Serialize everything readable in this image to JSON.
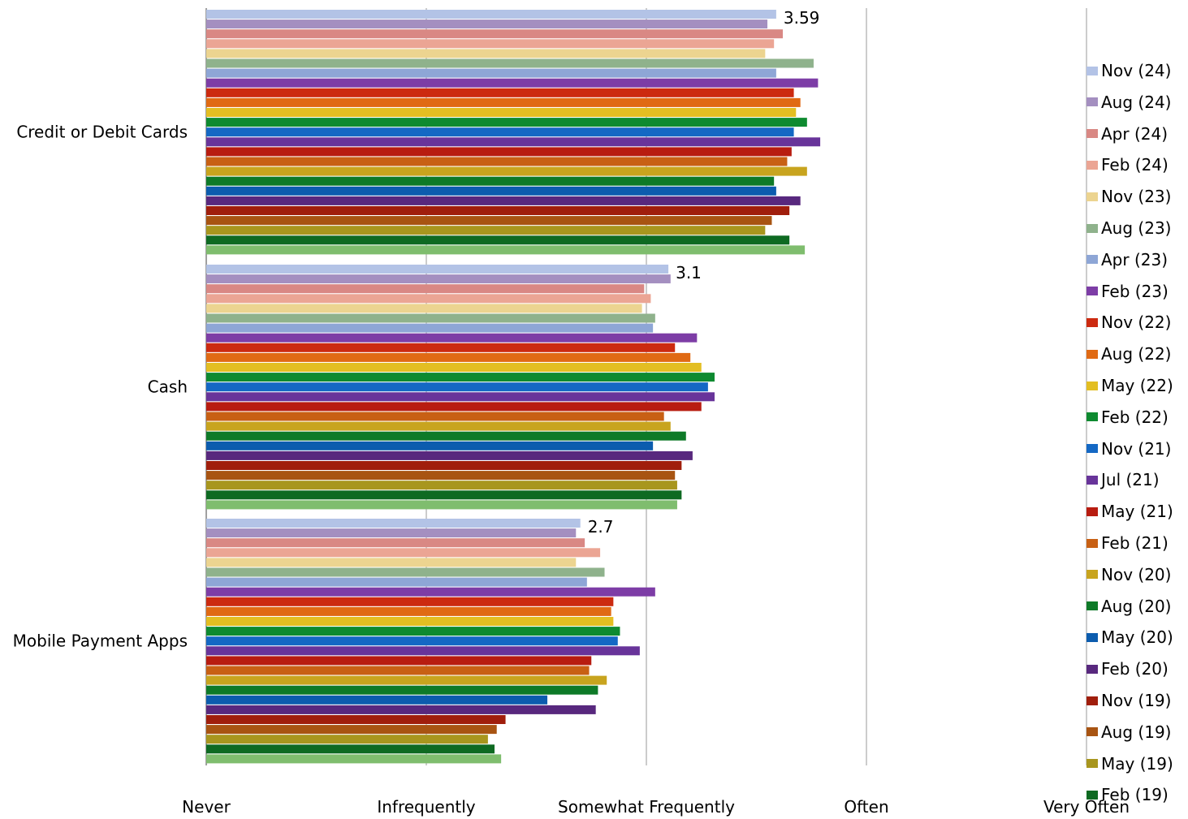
{
  "chart_data": {
    "type": "bar",
    "orientation": "horizontal",
    "categories": [
      "Credit or Debit Cards",
      "Cash",
      "Mobile Payment Apps"
    ],
    "x_ticks": [
      {
        "value": 1,
        "label": "Never"
      },
      {
        "value": 2,
        "label": "Infrequently"
      },
      {
        "value": 3,
        "label": "Somewhat Frequently"
      },
      {
        "value": 4,
        "label": "Often"
      },
      {
        "value": 5,
        "label": "Very Often"
      }
    ],
    "xlim": [
      1,
      5
    ],
    "grid": true,
    "legend_position": "right",
    "data_labels": [
      {
        "category": 0,
        "series": 0,
        "text": "3.59"
      },
      {
        "category": 1,
        "series": 0,
        "text": "3.1"
      },
      {
        "category": 2,
        "series": 0,
        "text": "2.7"
      }
    ],
    "series": [
      {
        "name": "Nov (24)",
        "color": "#b3c3e6",
        "values": [
          3.59,
          3.1,
          2.7
        ]
      },
      {
        "name": "Aug (24)",
        "color": "#a48fc0",
        "values": [
          3.55,
          3.11,
          2.68
        ]
      },
      {
        "name": "Apr (24)",
        "color": "#d98884",
        "values": [
          3.62,
          2.99,
          2.72
        ]
      },
      {
        "name": "Feb (24)",
        "color": "#eba594",
        "values": [
          3.58,
          3.02,
          2.79
        ]
      },
      {
        "name": "Nov (23)",
        "color": "#ecd490",
        "values": [
          3.54,
          2.98,
          2.68
        ]
      },
      {
        "name": "Aug (23)",
        "color": "#8fb28c",
        "values": [
          3.76,
          3.04,
          2.81
        ]
      },
      {
        "name": "Apr (23)",
        "color": "#8ea6d6",
        "values": [
          3.59,
          3.03,
          2.73
        ]
      },
      {
        "name": "Feb (23)",
        "color": "#7d3da6",
        "values": [
          3.78,
          3.23,
          3.04
        ]
      },
      {
        "name": "Nov (22)",
        "color": "#cc2a10",
        "values": [
          3.67,
          3.13,
          2.85
        ]
      },
      {
        "name": "Aug (22)",
        "color": "#e06a14",
        "values": [
          3.7,
          3.2,
          2.84
        ]
      },
      {
        "name": "May (22)",
        "color": "#e3be22",
        "values": [
          3.68,
          3.25,
          2.85
        ]
      },
      {
        "name": "Feb (22)",
        "color": "#0e8a30",
        "values": [
          3.73,
          3.31,
          2.88
        ]
      },
      {
        "name": "Nov (21)",
        "color": "#1468c4",
        "values": [
          3.67,
          3.28,
          2.87
        ]
      },
      {
        "name": "Jul (21)",
        "color": "#68349a",
        "values": [
          3.79,
          3.31,
          2.97
        ]
      },
      {
        "name": "May (21)",
        "color": "#b81c10",
        "values": [
          3.66,
          3.25,
          2.75
        ]
      },
      {
        "name": "Feb (21)",
        "color": "#c86014",
        "values": [
          3.64,
          3.08,
          2.74
        ]
      },
      {
        "name": "Nov (20)",
        "color": "#c8a41e",
        "values": [
          3.73,
          3.11,
          2.82
        ]
      },
      {
        "name": "Aug (20)",
        "color": "#0e7a28",
        "values": [
          3.58,
          3.18,
          2.78
        ]
      },
      {
        "name": "May (20)",
        "color": "#0c5cae",
        "values": [
          3.59,
          3.03,
          2.55
        ]
      },
      {
        "name": "Feb (20)",
        "color": "#58287e",
        "values": [
          3.7,
          3.21,
          2.77
        ]
      },
      {
        "name": "Nov (19)",
        "color": "#a01e0c",
        "values": [
          3.65,
          3.16,
          2.36
        ]
      },
      {
        "name": "Aug (19)",
        "color": "#a85412",
        "values": [
          3.57,
          3.13,
          2.32
        ]
      },
      {
        "name": "May (19)",
        "color": "#a8961e",
        "values": [
          3.54,
          3.14,
          2.28
        ]
      },
      {
        "name": "Feb (19)",
        "color": "#0e6a22",
        "values": [
          3.65,
          3.16,
          2.31
        ]
      },
      {
        "name": "",
        "color": "#7fbd6e",
        "values": [
          3.72,
          3.14,
          2.34
        ]
      }
    ]
  }
}
